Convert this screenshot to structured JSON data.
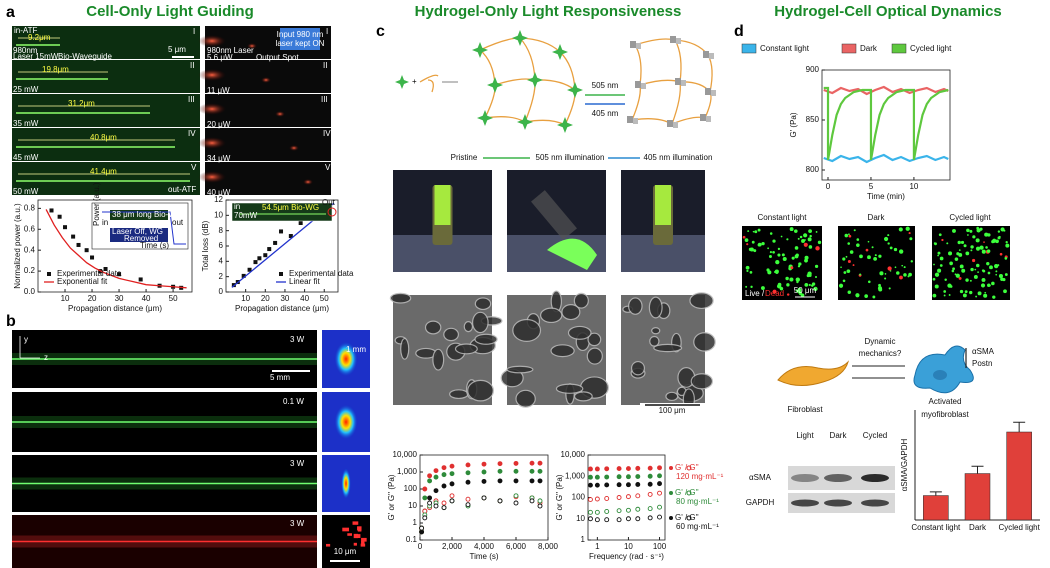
{
  "panel_a": {
    "letter": "a",
    "title": "Cell-Only Light Guiding",
    "left_labels": [
      "in-ATF",
      "9.2μm",
      "5 μm",
      "980nm",
      "Laser 15mW",
      "Bio-Waveguide",
      "I",
      "19.8μm",
      "25 mW",
      "II",
      "31.2μm",
      "35 mW",
      "III",
      "40.8μm",
      "45 mW",
      "IV",
      "41.4μm",
      "50 mW",
      "V",
      "out-ATF"
    ],
    "right_labels": [
      "980nm Laser",
      "5.6 μW",
      "Output Spot",
      "Input 980  nm",
      "laser kept ON",
      "I",
      "II",
      "III",
      "IV",
      "V",
      "11 μW",
      "20 μW",
      "34 μW",
      "40 μW"
    ]
  },
  "panel_b": {
    "letter": "b",
    "labels": [
      "3 W",
      "0.1 W",
      "3 W",
      "3 W",
      "y",
      "z",
      "5 mm",
      "1 mm",
      "10 μm"
    ]
  },
  "panel_c": {
    "letter": "c",
    "title": "Hydrogel-Only Light Responsiveness",
    "scheme_labels": [
      "505 nm",
      "405 nm"
    ],
    "photo_labels": [
      "Pristine",
      "505 nm illumination",
      "405 nm illumination"
    ],
    "scale_bar": "100 μm"
  },
  "panel_d": {
    "letter": "d",
    "title": "Hydrogel-Cell Optical Dynamics",
    "micrograph_labels": [
      "Constant light",
      "Dark",
      "Cycled light"
    ],
    "stain_labels": [
      "Live /",
      "Dead"
    ],
    "scale_bar": "50 μm",
    "scheme_labels": [
      "Dynamic",
      "mechanics?",
      "Fibroblast",
      "Activated",
      "myofibroblast",
      "αSMA",
      "Postn"
    ],
    "blot_columns": [
      "Light",
      "Dark",
      "Cycled"
    ],
    "blot_rows": [
      "αSMA",
      "GAPDH"
    ]
  },
  "chart_data": [
    {
      "type": "scatter",
      "xlabel": "Propagation distance (μm)",
      "ylabel": "Normalized power (a.u.)",
      "xlim": [
        0,
        57
      ],
      "xticks": [
        10,
        20,
        30,
        40,
        50
      ],
      "ylim": [
        0,
        0.88
      ],
      "yticks": [
        {
          "value": 0,
          "label": "0.0"
        },
        0.2,
        0.4,
        0.6,
        0.8
      ],
      "legend": "lower left",
      "series": [
        {
          "name": "Experimental data",
          "color": "#111111",
          "style": "squares",
          "x": [
            5,
            8,
            10,
            13,
            15,
            18,
            20,
            23,
            25,
            30,
            38,
            45,
            50,
            53
          ],
          "values": [
            0.78,
            0.72,
            0.62,
            0.53,
            0.45,
            0.4,
            0.33,
            0.2,
            0.22,
            0.17,
            0.12,
            0.06,
            0.05,
            0.04
          ]
        },
        {
          "name": "Exponential fit",
          "color": "#e02020",
          "style": "line",
          "x": [
            3,
            6,
            9,
            12,
            15,
            18,
            21,
            24,
            27,
            30,
            35,
            40,
            45,
            50,
            55
          ],
          "values": [
            0.79,
            0.64,
            0.52,
            0.42,
            0.35,
            0.28,
            0.23,
            0.19,
            0.16,
            0.13,
            0.1,
            0.07,
            0.06,
            0.05,
            0.04
          ]
        }
      ],
      "inset_labels": [
        "38 μm long Bio-WG",
        "in",
        "out",
        "Laser Off, WG",
        "Removed",
        "Power (a.u.)",
        "Time (s)"
      ]
    },
    {
      "type": "scatter",
      "xlabel": "Propagation distance (μm)",
      "ylabel": "Total loss (dB)",
      "xlim": [
        0,
        57
      ],
      "xticks": [
        10,
        20,
        30,
        40,
        50
      ],
      "ylim": [
        0,
        12
      ],
      "yticks": [
        0,
        2,
        4,
        6,
        8,
        10,
        12
      ],
      "legend": "lower right",
      "series": [
        {
          "name": "Experimental data",
          "color": "#111111",
          "style": "squares",
          "x": [
            4,
            6,
            9,
            12,
            15,
            17,
            20,
            22,
            25,
            28,
            33,
            38,
            43,
            47,
            53
          ],
          "values": [
            0.9,
            1.3,
            2.1,
            2.9,
            3.9,
            4.4,
            4.8,
            5.6,
            6.4,
            7.9,
            7.3,
            9.0,
            9.9,
            10.4,
            11.3
          ]
        },
        {
          "name": "Linear fit",
          "color": "#2233cc",
          "style": "line",
          "x": [
            3,
            55
          ],
          "values": [
            0.6,
            11.6
          ]
        }
      ],
      "inset_labels": [
        "54.5μm Bio-WG",
        "in",
        "70mW",
        "Out"
      ]
    },
    {
      "type": "scatter",
      "xlabel": "Time (s)",
      "ylabel": "G' or G'' (Pa)",
      "ylog": true,
      "xlim": [
        0,
        8000
      ],
      "xticks": [
        0,
        {
          "value": 2000,
          "label": "2,000"
        },
        {
          "value": 4000,
          "label": "4,000"
        },
        {
          "value": 6000,
          "label": "6,000"
        },
        {
          "value": 8000,
          "label": "8,000"
        }
      ],
      "ylim": [
        0.1,
        10000
      ],
      "yticks": [
        0.1,
        1,
        10,
        100,
        {
          "value": 1000,
          "label": "1,000"
        },
        {
          "value": 10000,
          "label": "10,000"
        }
      ],
      "x": [
        100,
        300,
        600,
        1000,
        1500,
        2000,
        3000,
        4000,
        5000,
        6000,
        7000,
        7500
      ],
      "series": [
        {
          "color": "#e03030",
          "style": "points",
          "values": [
            0.3,
            100,
            600,
            1200,
            1800,
            2200,
            2600,
            2900,
            3100,
            3200,
            3300,
            3300
          ]
        },
        {
          "color": "#2e8b3a",
          "style": "points",
          "values": [
            0.3,
            30,
            300,
            500,
            700,
            800,
            900,
            1000,
            1100,
            1100,
            1100,
            1100
          ]
        },
        {
          "color": "#111111",
          "style": "points",
          "values": [
            0.3,
            5,
            30,
            80,
            150,
            200,
            250,
            280,
            300,
            300,
            300,
            300
          ]
        },
        {
          "color": "#e03030",
          "style": "open",
          "values": [
            0.5,
            5,
            8,
            20,
            15,
            40,
            25,
            30,
            20,
            35,
            30,
            15
          ]
        },
        {
          "color": "#2e8b3a",
          "style": "open",
          "values": [
            0.5,
            3,
            10,
            15,
            8,
            20,
            10,
            30,
            20,
            40,
            30,
            20
          ]
        },
        {
          "color": "#111111",
          "style": "open",
          "values": [
            0.5,
            2,
            15,
            10,
            8,
            20,
            12,
            30,
            20,
            15,
            20,
            10
          ]
        }
      ]
    },
    {
      "type": "scatter",
      "xlabel": "Frequency (rad · s⁻¹)",
      "ylabel": "G' or G'' (Pa)",
      "xlog": true,
      "ylog": true,
      "xlim": [
        0.5,
        150
      ],
      "xticks": [
        1,
        10,
        100
      ],
      "ylim": [
        1,
        10000
      ],
      "yticks": [
        1,
        10,
        100,
        {
          "value": 1000,
          "label": "1,000"
        },
        {
          "value": 10000,
          "label": "10,000"
        }
      ],
      "x": [
        0.6,
        1,
        2,
        5,
        10,
        20,
        50,
        100
      ],
      "series": [
        {
          "color": "#e03030",
          "style": "points",
          "values": [
            2200,
            2200,
            2250,
            2300,
            2300,
            2350,
            2400,
            2500
          ]
        },
        {
          "color": "#2e8b3a",
          "style": "points",
          "values": [
            900,
            900,
            920,
            950,
            950,
            970,
            1000,
            1050
          ]
        },
        {
          "color": "#111111",
          "style": "points",
          "values": [
            380,
            380,
            390,
            400,
            400,
            410,
            420,
            450
          ]
        },
        {
          "color": "#e03030",
          "style": "open",
          "values": [
            80,
            85,
            90,
            100,
            110,
            120,
            140,
            160
          ]
        },
        {
          "color": "#2e8b3a",
          "style": "open",
          "values": [
            20,
            20,
            22,
            24,
            25,
            28,
            30,
            35
          ]
        },
        {
          "color": "#111111",
          "style": "open",
          "values": [
            10,
            9,
            9,
            9,
            10,
            10,
            11,
            12
          ]
        }
      ],
      "legend_entries": [
        {
          "label": "G' / G''",
          "note": "120 mg·mL⁻¹",
          "color": "#e03030"
        },
        {
          "label": "G' / G''",
          "note": "80 mg·mL⁻¹",
          "color": "#2e8b3a"
        },
        {
          "label": "G' / G''",
          "note": "60 mg·mL⁻¹",
          "color": "#111111"
        }
      ]
    },
    {
      "type": "line",
      "xlabel": "Time (min)",
      "ylabel": "G' (Pa)",
      "xlim": [
        -0.7,
        14.2
      ],
      "xticks": [
        0,
        5,
        10
      ],
      "ylim": [
        790,
        900
      ],
      "yticks": [
        800,
        850,
        900
      ],
      "legend": "top",
      "series": [
        {
          "name": "Constant light",
          "color": "#3ab4ea",
          "x": [
            -0.5,
            0.5,
            1.5,
            2.5,
            3.5,
            4.5,
            5.5,
            6.5,
            7.5,
            8.5,
            9.5,
            10.5,
            11.5,
            12.5,
            13.5,
            14
          ],
          "values": [
            812,
            809,
            814,
            811,
            813,
            808,
            812,
            815,
            810,
            813,
            809,
            812,
            814,
            810,
            813,
            811
          ]
        },
        {
          "name": "Dark",
          "color": "#ea6464",
          "x": [
            -0.5,
            0.5,
            1.5,
            2.5,
            3.5,
            4.5,
            5.5,
            6.5,
            7.5,
            8.5,
            9.5,
            10.5,
            11.5,
            12.5,
            13.5,
            14
          ],
          "values": [
            880,
            877,
            882,
            879,
            881,
            876,
            880,
            883,
            878,
            881,
            877,
            880,
            882,
            878,
            881,
            879
          ]
        },
        {
          "name": "Cycled light",
          "color": "#5ec83e",
          "x": [
            -0.5,
            0,
            0,
            0.5,
            1,
            1.5,
            2,
            3,
            4,
            5,
            5,
            5.5,
            6,
            6.5,
            7,
            8,
            9,
            10,
            10,
            10.5,
            11,
            11.5,
            12,
            13,
            14
          ],
          "values": [
            882,
            882,
            810,
            835,
            855,
            866,
            872,
            878,
            880,
            880,
            810,
            835,
            855,
            866,
            872,
            878,
            880,
            880,
            810,
            835,
            855,
            866,
            872,
            878,
            880
          ]
        }
      ]
    },
    {
      "type": "bar",
      "ylabel": "αSMA/GAPDH",
      "categories": [
        "Constant light",
        "Dark",
        "Cycled light"
      ],
      "values": [
        1.0,
        1.9,
        3.6
      ],
      "errors": [
        0.15,
        0.3,
        0.4
      ],
      "color": "#e0403a",
      "ylim": [
        0,
        4.5
      ]
    }
  ]
}
